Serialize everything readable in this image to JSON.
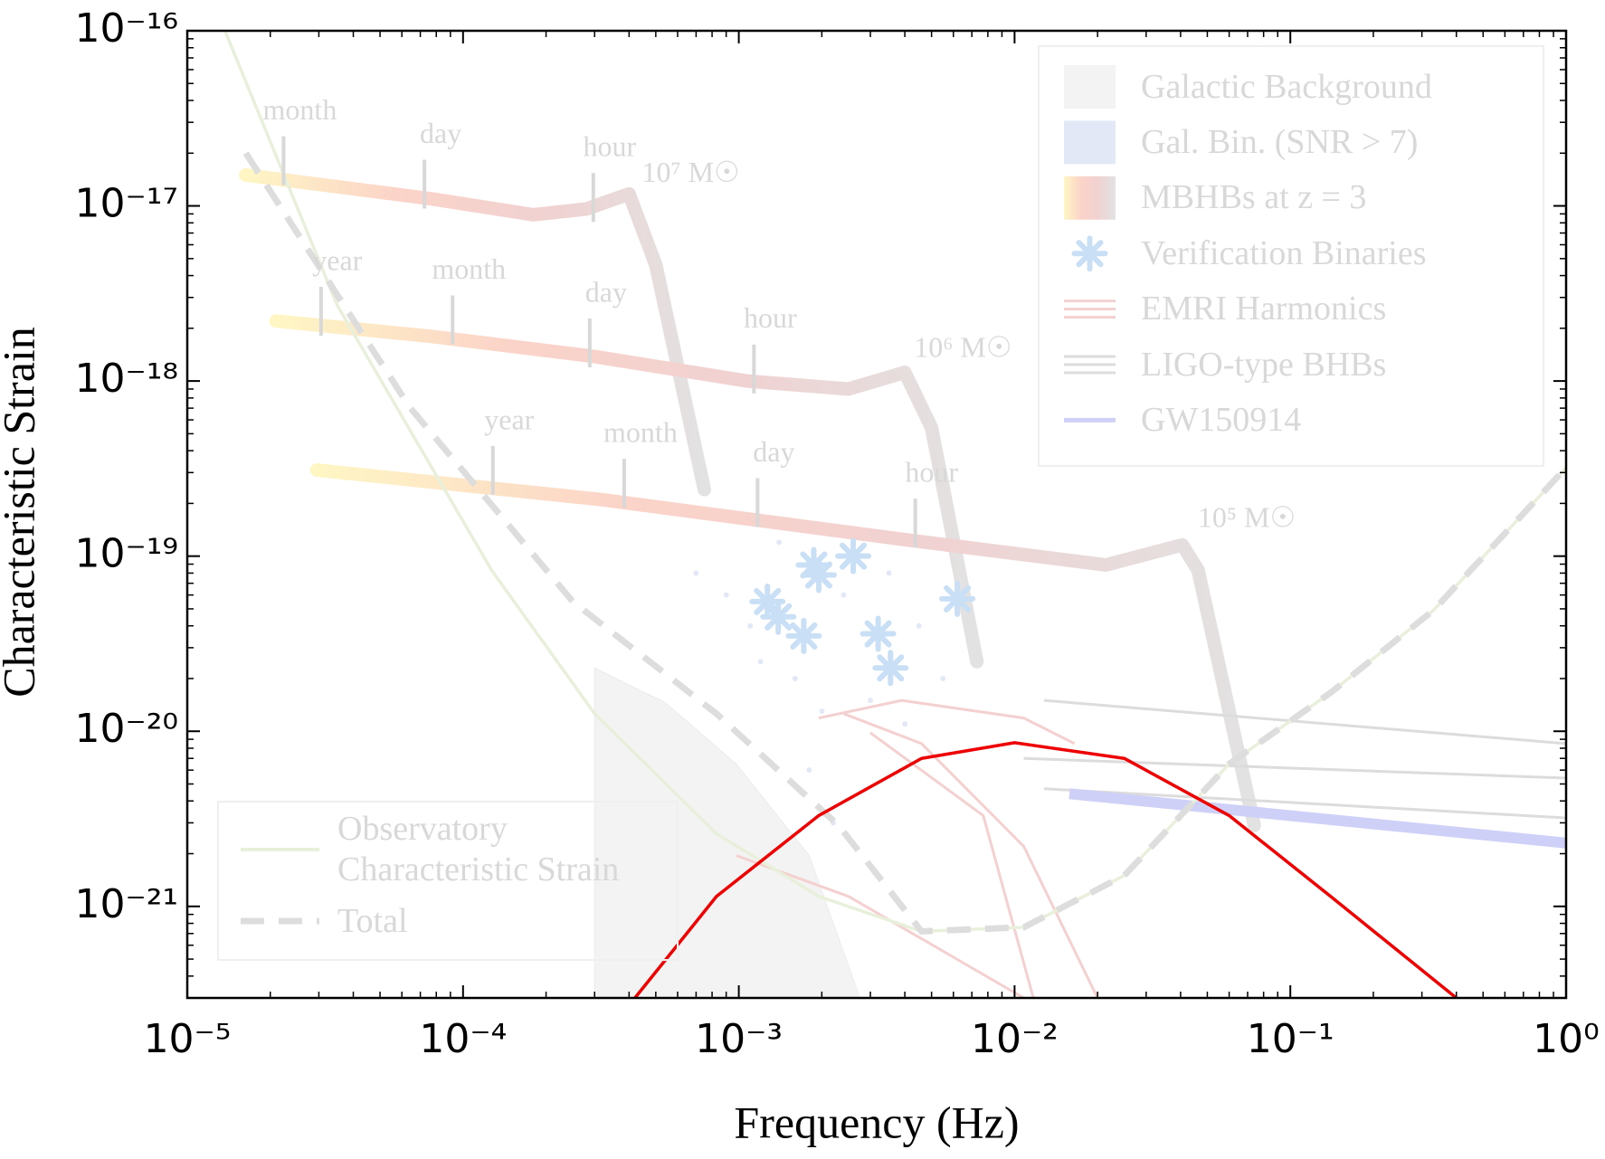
{
  "chart_data": {
    "type": "line",
    "xlabel": "Frequency (Hz)",
    "ylabel": "Characteristic Strain",
    "xscale": "log",
    "yscale": "log",
    "xlim": [
      1e-05,
      1
    ],
    "ylim": [
      3e-22,
      1e-16
    ],
    "xticks": [
      {
        "value": 1e-05,
        "label": "10⁻⁵"
      },
      {
        "value": 0.0001,
        "label": "10⁻⁴"
      },
      {
        "value": 0.001,
        "label": "10⁻³"
      },
      {
        "value": 0.01,
        "label": "10⁻²"
      },
      {
        "value": 0.1,
        "label": "10⁻¹"
      },
      {
        "value": 1,
        "label": "10⁰"
      }
    ],
    "yticks": [
      {
        "value": 1e-21,
        "label": "10⁻²¹"
      },
      {
        "value": 1e-20,
        "label": "10⁻²⁰"
      },
      {
        "value": 1e-19,
        "label": "10⁻¹⁹"
      },
      {
        "value": 1e-18,
        "label": "10⁻¹⁸"
      },
      {
        "value": 1e-17,
        "label": "10⁻¹⁷"
      },
      {
        "value": 1e-16,
        "label": "10⁻¹⁶"
      }
    ],
    "series": [
      {
        "name": "Galactic Background",
        "kind": "area",
        "color": "#f3f3f3",
        "legend": "upper right",
        "x": [
          0.0003,
          0.0003,
          0.00054,
          0.00098,
          0.0018,
          0.00275
        ],
        "values": [
          3e-22,
          2.3e-20,
          1.46e-20,
          6.5e-21,
          1.95e-21,
          3e-22
        ]
      },
      {
        "name": "Gal. Bin. (SNR > 7)",
        "kind": "cloud",
        "color": "#e3e8f6",
        "legend": "upper right",
        "x": [
          0.0007,
          0.0009,
          0.0011,
          0.0014,
          0.0016,
          0.002,
          0.0024,
          0.003,
          0.0035,
          0.0045,
          0.0055,
          0.0065,
          0.0012,
          0.0022,
          0.0018,
          0.004
        ],
        "values": [
          8e-20,
          6e-20,
          4e-20,
          1.2e-19,
          2e-20,
          1.3e-20,
          6e-20,
          1.5e-20,
          8e-20,
          4e-20,
          2e-20,
          6e-20,
          2.5e-20,
          3e-21,
          6e-21,
          1.1e-20
        ]
      },
      {
        "name": "MBHBs at z = 3",
        "kind": "band",
        "colors": [
          "#fff6c4",
          "#fbd3c8",
          "#f0d2d2",
          "#e2e2e2"
        ],
        "legend": "upper right",
        "tracks": [
          {
            "x": [
              1.63e-05,
              7.6e-05,
              0.00018,
              0.00028,
              0.0004,
              0.0005,
              0.00075
            ],
            "values": [
              1.5e-17,
              1.1e-17,
              8.9e-18,
              9.6e-18,
              1.17e-17,
              4.6e-18,
              2.4e-19
            ]
          },
          {
            "x": [
              2.1e-05,
              7.6e-05,
              0.0003,
              0.00107,
              0.0025,
              0.004,
              0.005,
              0.0073
            ],
            "values": [
              2.2e-18,
              1.8e-18,
              1.38e-18,
              1e-18,
              9e-19,
              1.12e-18,
              5.4e-19,
              2.5e-20
            ]
          },
          {
            "x": [
              2.95e-05,
              0.00032,
              0.0042,
              0.0214,
              0.0406,
              0.0463,
              0.074
            ],
            "values": [
              3.1e-19,
              2.1e-19,
              1.23e-19,
              8.9e-20,
              1.16e-19,
              8.3e-20,
              2.9e-21
            ]
          }
        ]
      },
      {
        "name": "Verification Binaries",
        "kind": "scatter",
        "color": "#c9dff6",
        "legend": "upper right",
        "x": [
          0.00127,
          0.00139,
          0.00172,
          0.00187,
          0.00195,
          0.0026,
          0.0032,
          0.00355,
          0.0062
        ],
        "values": [
          5.5e-20,
          4.5e-20,
          3.5e-20,
          8.9e-20,
          7.8e-20,
          1e-19,
          3.6e-20,
          2.3e-20,
          5.7e-20
        ]
      },
      {
        "name": "EMRI Harmonics",
        "kind": "lines",
        "color": "#f5d0d0",
        "legend": "upper right",
        "tracks": [
          {
            "x": [
              0.00195,
              0.0039,
              0.0108,
              0.0165
            ],
            "values": [
              1.19e-20,
              1.5e-20,
              1.19e-20,
              8.5e-21
            ]
          },
          {
            "x": [
              0.00098,
              0.0025,
              0.0108
            ],
            "values": [
              1.95e-21,
              1.14e-21,
              3e-22
            ]
          },
          {
            "x": [
              0.0024,
              0.0046,
              0.0108,
              0.02
            ],
            "values": [
              1.26e-20,
              8.5e-21,
              2.2e-21,
              3e-22
            ]
          },
          {
            "x": [
              0.003,
              0.0077,
              0.0117
            ],
            "values": [
              9.8e-21,
              3.3e-21,
              3e-22
            ]
          }
        ]
      },
      {
        "name": "LIGO-type BHBs",
        "kind": "lines",
        "color": "#dcdcdc",
        "legend": "upper right",
        "tracks": [
          {
            "x": [
              0.0128,
              1
            ],
            "values": [
              1.5e-20,
              8.5e-21
            ]
          },
          {
            "x": [
              0.0108,
              1
            ],
            "values": [
              7e-21,
              5.4e-21
            ]
          },
          {
            "x": [
              0.0128,
              1
            ],
            "values": [
              4.7e-21,
              3.2e-21
            ]
          }
        ]
      },
      {
        "name": "GW150914",
        "kind": "thick",
        "color": "#cfd0f7",
        "legend": "upper right",
        "x": [
          0.0158,
          1
        ],
        "values": [
          4.4e-21,
          2.3e-21
        ]
      },
      {
        "name": "Observatory Characteristic Strain",
        "kind": "line",
        "color": "#e8f0dc",
        "legend": "lower left",
        "x": [
          1.37e-05,
          3.5e-05,
          0.000127,
          0.0003,
          0.00083,
          0.00195,
          0.0046,
          0.0108,
          0.025,
          0.06,
          0.14,
          0.33,
          1
        ],
        "values": [
          1e-16,
          2.7e-18,
          8.3e-20,
          1.26e-20,
          2.6e-21,
          1.14e-21,
          7.2e-22,
          7.6e-22,
          1.5e-21,
          6.5e-21,
          1.66e-20,
          4.9e-20,
          3.2e-19
        ]
      },
      {
        "name": "Total",
        "kind": "dashed",
        "color": "#dddddd",
        "legend": "lower left",
        "x": [
          1.63e-05,
          6.4e-05,
          0.00025,
          0.00083,
          0.0023,
          0.0046,
          0.0108,
          0.025,
          0.06,
          0.14,
          0.33,
          1
        ],
        "values": [
          2e-17,
          7.1e-19,
          5.5e-20,
          1.26e-20,
          2.9e-21,
          7.2e-22,
          7.6e-22,
          1.5e-21,
          6.5e-21,
          1.66e-20,
          4.9e-20,
          3.2e-19
        ]
      },
      {
        "kind": "line",
        "color": "#ee0000",
        "x": [
          0.00042,
          0.00083,
          0.00195,
          0.0046,
          0.01,
          0.025,
          0.06,
          0.14,
          0.4
        ],
        "values": [
          3e-22,
          1.14e-21,
          3.3e-21,
          7e-21,
          8.6e-21,
          7e-21,
          3.3e-21,
          1.14e-21,
          3e-22
        ]
      }
    ],
    "annotations": [
      {
        "text": "month",
        "x": 2.56e-05,
        "y": 3.4e-17,
        "tick": true
      },
      {
        "text": "day",
        "x": 8.3e-05,
        "y": 2.5e-17,
        "tick": true
      },
      {
        "text": "hour",
        "x": 0.00034,
        "y": 2.1e-17,
        "tick": true
      },
      {
        "text": "10⁷ M☉",
        "x": 0.00067,
        "y": 1.5e-17,
        "tick": false
      },
      {
        "text": "year",
        "x": 3.5e-05,
        "y": 4.7e-18,
        "tick": true
      },
      {
        "text": "month",
        "x": 0.000105,
        "y": 4.2e-18,
        "tick": true
      },
      {
        "text": "day",
        "x": 0.00033,
        "y": 3.1e-18,
        "tick": true
      },
      {
        "text": "hour",
        "x": 0.0013,
        "y": 2.2e-18,
        "tick": true
      },
      {
        "text": "10⁶ M☉",
        "x": 0.0065,
        "y": 1.5e-18,
        "tick": false
      },
      {
        "text": "year",
        "x": 0.000147,
        "y": 5.8e-19,
        "tick": true
      },
      {
        "text": "month",
        "x": 0.00044,
        "y": 4.9e-19,
        "tick": true
      },
      {
        "text": "day",
        "x": 0.00134,
        "y": 3.8e-19,
        "tick": true
      },
      {
        "text": "hour",
        "x": 0.005,
        "y": 2.9e-19,
        "tick": true
      },
      {
        "text": "10⁵ M☉",
        "x": 0.0695,
        "y": 1.6e-19,
        "tick": false
      }
    ]
  }
}
